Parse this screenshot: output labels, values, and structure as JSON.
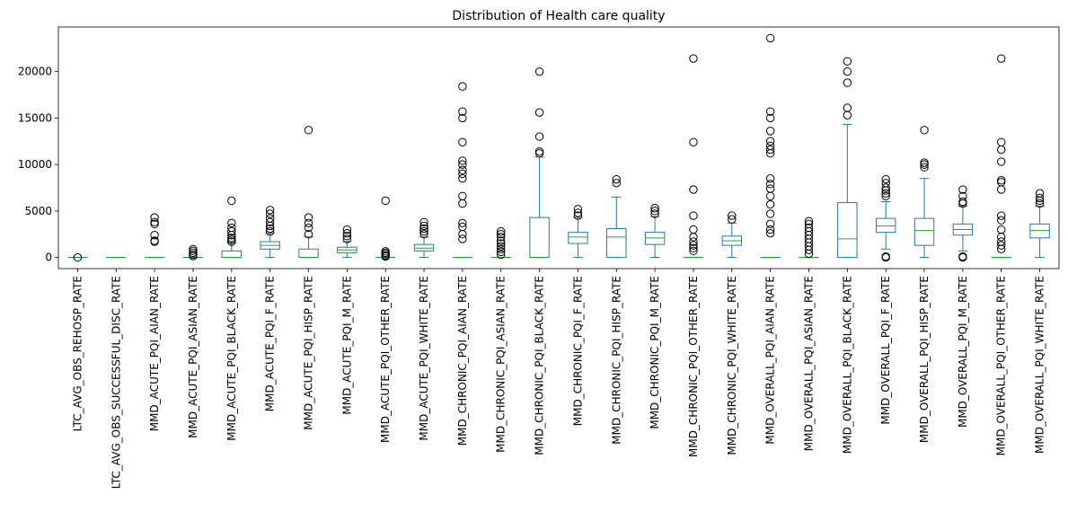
{
  "chart_data": {
    "type": "box",
    "title": "Distribution of Health care quality",
    "xlabel": "",
    "ylabel": "",
    "ylim": [
      -1200,
      24800
    ],
    "yticks": [
      0,
      5000,
      10000,
      15000,
      20000
    ],
    "ytick_labels": [
      "0",
      "5000",
      "10000",
      "15000",
      "20000"
    ],
    "grid": false,
    "legend": "none",
    "colors": {
      "box": "#1f77b4",
      "median": "#2ca02c",
      "flier": "#000000"
    },
    "series": [
      {
        "name": "LTC_AVG_OBS_REHOSP_RATE",
        "whislo": 0,
        "q1": 0,
        "med": 0,
        "q3": 0,
        "whishi": 0,
        "fliers": [
          0
        ]
      },
      {
        "name": "LTC_AVG_OBS_SUCCESSFUL_DISC_RATE",
        "whislo": 0,
        "q1": 0,
        "med": 0,
        "q3": 0,
        "whishi": 0,
        "fliers": []
      },
      {
        "name": "MMD_ACUTE_PQI_AIAN_RATE",
        "whislo": 0,
        "q1": 0,
        "med": 0,
        "q3": 0,
        "whishi": 0,
        "fliers": [
          1700,
          1800,
          2400,
          3600,
          3800,
          4300
        ]
      },
      {
        "name": "MMD_ACUTE_PQI_ASIAN_RATE",
        "whislo": 0,
        "q1": 0,
        "med": 0,
        "q3": 0,
        "whishi": 0,
        "fliers": [
          150,
          300,
          500,
          700,
          900
        ]
      },
      {
        "name": "MMD_ACUTE_PQI_BLACK_RATE",
        "whislo": 0,
        "q1": 0,
        "med": 0,
        "q3": 700,
        "whishi": 1600,
        "fliers": [
          1700,
          1900,
          2100,
          2400,
          2800,
          3200,
          3700,
          6100
        ]
      },
      {
        "name": "MMD_ACUTE_PQI_F_RATE",
        "whislo": 0,
        "q1": 900,
        "med": 1300,
        "q3": 1700,
        "whishi": 2600,
        "fliers": [
          2800,
          3100,
          3400,
          3800,
          4200,
          4700,
          5100
        ]
      },
      {
        "name": "MMD_ACUTE_PQI_HISP_RATE",
        "whislo": 0,
        "q1": 0,
        "med": 0,
        "q3": 900,
        "whishi": 2200,
        "fliers": [
          2500,
          3200,
          3700,
          4300,
          13700
        ]
      },
      {
        "name": "MMD_ACUTE_PQI_M_RATE",
        "whislo": 0,
        "q1": 500,
        "med": 800,
        "q3": 1100,
        "whishi": 1700,
        "fliers": [
          2000,
          2300,
          2600,
          3000
        ]
      },
      {
        "name": "MMD_ACUTE_PQI_OTHER_RATE",
        "whislo": 0,
        "q1": 0,
        "med": 0,
        "q3": 0,
        "whishi": 0,
        "fliers": [
          100,
          200,
          350,
          500,
          650,
          6100
        ]
      },
      {
        "name": "MMD_ACUTE_PQI_WHITE_RATE",
        "whislo": 0,
        "q1": 700,
        "med": 1000,
        "q3": 1400,
        "whishi": 2200,
        "fliers": [
          2500,
          2800,
          3100,
          3400,
          3800
        ]
      },
      {
        "name": "MMD_CHRONIC_PQI_AIAN_RATE",
        "whislo": 0,
        "q1": 0,
        "med": 0,
        "q3": 0,
        "whishi": 0,
        "fliers": [
          2000,
          2500,
          3300,
          3700,
          5800,
          6600,
          8500,
          9000,
          9400,
          10000,
          10400,
          12400,
          15000,
          15700,
          18400
        ]
      },
      {
        "name": "MMD_CHRONIC_PQI_ASIAN_RATE",
        "whislo": 0,
        "q1": 0,
        "med": 0,
        "q3": 0,
        "whishi": 0,
        "fliers": [
          300,
          600,
          900,
          1200,
          1500,
          1800,
          2200,
          2500,
          2800
        ]
      },
      {
        "name": "MMD_CHRONIC_PQI_BLACK_RATE",
        "whislo": 0,
        "q1": 0,
        "med": 0,
        "q3": 4300,
        "whishi": 10800,
        "fliers": [
          11200,
          11400,
          13000,
          15600,
          20000
        ]
      },
      {
        "name": "MMD_CHRONIC_PQI_F_RATE",
        "whislo": 0,
        "q1": 1500,
        "med": 2200,
        "q3": 2700,
        "whishi": 4300,
        "fliers": [
          4500,
          4800,
          5200
        ]
      },
      {
        "name": "MMD_CHRONIC_PQI_HISP_RATE",
        "whislo": 0,
        "q1": 0,
        "med": 2200,
        "q3": 3100,
        "whishi": 6500,
        "fliers": [
          8000,
          8400
        ]
      },
      {
        "name": "MMD_CHRONIC_PQI_M_RATE",
        "whislo": 0,
        "q1": 1400,
        "med": 2100,
        "q3": 2700,
        "whishi": 4400,
        "fliers": [
          4700,
          5000,
          5300
        ]
      },
      {
        "name": "MMD_CHRONIC_PQI_OTHER_RATE",
        "whislo": 0,
        "q1": 0,
        "med": 0,
        "q3": 0,
        "whishi": 0,
        "fliers": [
          700,
          1000,
          1300,
          1700,
          2200,
          3000,
          4500,
          7300,
          12400,
          21400
        ]
      },
      {
        "name": "MMD_CHRONIC_PQI_WHITE_RATE",
        "whislo": 0,
        "q1": 1300,
        "med": 1800,
        "q3": 2300,
        "whishi": 3700,
        "fliers": [
          4100,
          4500
        ]
      },
      {
        "name": "MMD_OVERALL_PQI_AIAN_RATE",
        "whislo": 0,
        "q1": 0,
        "med": 0,
        "q3": 0,
        "whishi": 0,
        "fliers": [
          2600,
          3000,
          3600,
          4700,
          5700,
          6600,
          7400,
          7900,
          8500,
          11200,
          11600,
          12000,
          12500,
          13600,
          15000,
          15700,
          23600
        ]
      },
      {
        "name": "MMD_OVERALL_PQI_ASIAN_RATE",
        "whislo": 0,
        "q1": 0,
        "med": 0,
        "q3": 0,
        "whishi": 0,
        "fliers": [
          400,
          800,
          1200,
          1600,
          2000,
          2400,
          2800,
          3200,
          3600,
          3900
        ]
      },
      {
        "name": "MMD_OVERALL_PQI_BLACK_RATE",
        "whislo": 0,
        "q1": 0,
        "med": 2000,
        "q3": 5900,
        "whishi": 14300,
        "fliers": [
          15300,
          16100,
          18800,
          20000,
          21100
        ]
      },
      {
        "name": "MMD_OVERALL_PQI_F_RATE",
        "whislo": 900,
        "q1": 2700,
        "med": 3400,
        "q3": 4200,
        "whishi": 6000,
        "fliers": [
          0,
          100,
          6600,
          6900,
          7200,
          7500,
          8000,
          8400
        ]
      },
      {
        "name": "MMD_OVERALL_PQI_HISP_RATE",
        "whislo": 0,
        "q1": 1300,
        "med": 2900,
        "q3": 4200,
        "whishi": 8500,
        "fliers": [
          9700,
          10000,
          10200,
          13700
        ]
      },
      {
        "name": "MMD_OVERALL_PQI_M_RATE",
        "whislo": 700,
        "q1": 2400,
        "med": 3000,
        "q3": 3600,
        "whishi": 5500,
        "fliers": [
          0,
          100,
          5800,
          6000,
          6600,
          7300
        ]
      },
      {
        "name": "MMD_OVERALL_PQI_OTHER_RATE",
        "whislo": 0,
        "q1": 0,
        "med": 0,
        "q3": 0,
        "whishi": 0,
        "fliers": [
          900,
          1300,
          1700,
          2200,
          3000,
          4000,
          4500,
          7300,
          8100,
          8300,
          10300,
          11600,
          12400,
          21400
        ]
      },
      {
        "name": "MMD_OVERALL_PQI_WHITE_RATE",
        "whislo": 0,
        "q1": 2100,
        "med": 2900,
        "q3": 3600,
        "whishi": 5500,
        "fliers": [
          5800,
          6100,
          6400,
          6900
        ]
      }
    ]
  }
}
